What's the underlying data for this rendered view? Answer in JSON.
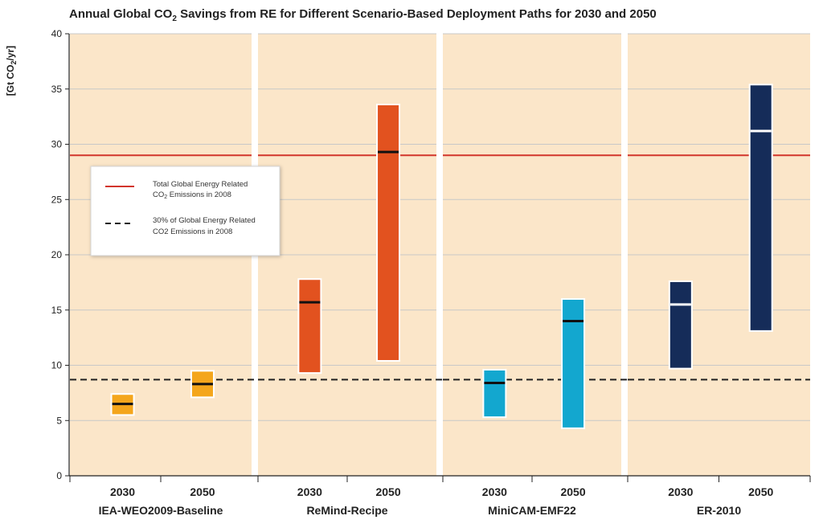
{
  "chart_data": {
    "type": "bar",
    "title_main": "Annual Global CO",
    "title_sub": "2",
    "title_rest": " Savings from RE for Different Scenario-Based Deployment Paths for 2030 and 2050",
    "ylabel_prefix": "[Gt CO",
    "ylabel_sub": "2",
    "ylabel_suffix": "/yr]",
    "ylim": [
      0,
      40
    ],
    "yticks": [
      0,
      5,
      10,
      15,
      20,
      25,
      30,
      35,
      40
    ],
    "reference_lines": {
      "total_2008": 29,
      "thirty_percent_2008": 8.7
    },
    "colors": {
      "panel_bg": "#fbe6c9",
      "total_line": "#d2352b",
      "dashed_line": "#222222",
      "gridline": "#c8c8c8"
    },
    "legend": {
      "placement": "left-middle",
      "item1_line1": "Total Global Energy Related",
      "item1_line2_prefix": "CO",
      "item1_line2_sub": "2",
      "item1_line2_suffix": " Emissions in 2008",
      "item2_line1": "30% of Global Energy Related",
      "item2_line2": "CO2 Emissions in 2008"
    },
    "groups": [
      {
        "name": "IEA-WEO2009-Baseline",
        "color": "#f4a61c",
        "median_color": "#111111",
        "bars": [
          {
            "year": "2030",
            "min": 5.5,
            "max": 7.4,
            "median": 6.5
          },
          {
            "year": "2050",
            "min": 7.1,
            "max": 9.5,
            "median": 8.3
          }
        ]
      },
      {
        "name": "ReMind-Recipe",
        "color": "#e2521f",
        "median_color": "#111111",
        "bars": [
          {
            "year": "2030",
            "min": 9.3,
            "max": 17.8,
            "median": 15.7
          },
          {
            "year": "2050",
            "min": 10.4,
            "max": 33.6,
            "median": 29.3
          }
        ]
      },
      {
        "name": "MiniCAM-EMF22",
        "color": "#13a7cf",
        "median_color": "#111111",
        "bars": [
          {
            "year": "2030",
            "min": 5.3,
            "max": 9.6,
            "median": 8.4
          },
          {
            "year": "2050",
            "min": 4.3,
            "max": 16.0,
            "median": 14.0
          }
        ]
      },
      {
        "name": "ER-2010",
        "color": "#152c59",
        "median_color": "#ffffff",
        "bars": [
          {
            "year": "2030",
            "min": 9.7,
            "max": 17.6,
            "median": 15.5
          },
          {
            "year": "2050",
            "min": 13.1,
            "max": 35.4,
            "median": 31.2
          }
        ]
      }
    ]
  }
}
